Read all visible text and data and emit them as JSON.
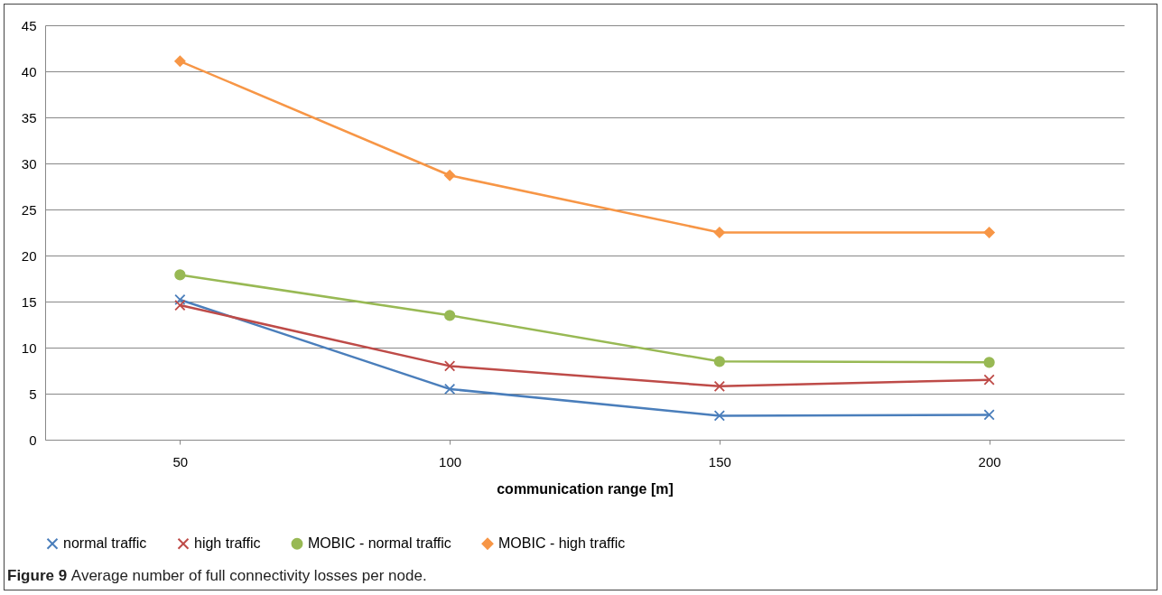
{
  "chart_data": {
    "type": "line",
    "categories": [
      "50",
      "100",
      "150",
      "200"
    ],
    "xlabel": "communication range [m]",
    "series": [
      {
        "name": "normal traffic",
        "color": "#4a7ebb",
        "marker": "cross",
        "values": [
          15.2,
          5.5,
          2.6,
          2.7
        ]
      },
      {
        "name": "high traffic",
        "color": "#be4b48",
        "marker": "cross",
        "values": [
          14.6,
          8.0,
          5.8,
          6.5
        ]
      },
      {
        "name": "MOBIC - normal traffic",
        "color": "#98b954",
        "marker": "circle",
        "values": [
          17.9,
          13.5,
          8.5,
          8.4
        ]
      },
      {
        "name": "MOBIC - high traffic",
        "color": "#f79646",
        "marker": "diamond",
        "values": [
          41.1,
          28.7,
          22.5,
          22.5
        ]
      }
    ],
    "ylim": [
      0,
      45
    ],
    "yticks": [
      0,
      5,
      10,
      15,
      20,
      25,
      30,
      35,
      40,
      45
    ],
    "grid": "y",
    "legend": "bottom",
    "annotations": [
      "Figure 9",
      "Average number of full connectivity losses per node."
    ]
  }
}
